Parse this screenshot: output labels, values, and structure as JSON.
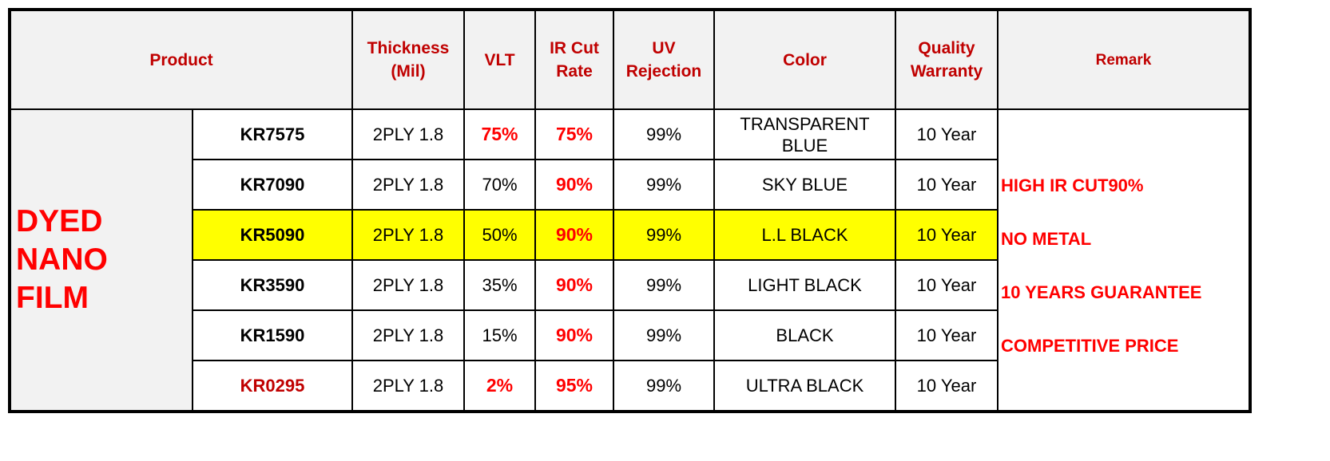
{
  "headers": {
    "product": "Product",
    "thickness": [
      "Thickness",
      "(Mil)"
    ],
    "vlt": "VLT",
    "ir": [
      "IR Cut",
      "Rate"
    ],
    "uv": [
      "UV",
      "Rejection"
    ],
    "color": "Color",
    "warranty": [
      "Quality",
      "Warranty"
    ],
    "remark": "Remark"
  },
  "category": [
    "DYED",
    "NANO",
    "FILM"
  ],
  "rows": [
    {
      "model": "KR7575",
      "thickness": "2PLY 1.8",
      "vlt": "75%",
      "ir": "75%",
      "uv": "99%",
      "color": "TRANSPARENT BLUE",
      "warranty": "10 Year"
    },
    {
      "model": "KR7090",
      "thickness": "2PLY 1.8",
      "vlt": "70%",
      "ir": "90%",
      "uv": "99%",
      "color": "SKY BLUE",
      "warranty": "10 Year"
    },
    {
      "model": "KR5090",
      "thickness": "2PLY 1.8",
      "vlt": "50%",
      "ir": "90%",
      "uv": "99%",
      "color": "L.L BLACK",
      "warranty": "10 Year"
    },
    {
      "model": "KR3590",
      "thickness": "2PLY 1.8",
      "vlt": "35%",
      "ir": "90%",
      "uv": "99%",
      "color": "LIGHT BLACK",
      "warranty": "10 Year"
    },
    {
      "model": "KR1590",
      "thickness": "2PLY 1.8",
      "vlt": "15%",
      "ir": "90%",
      "uv": "99%",
      "color": "BLACK",
      "warranty": "10 Year"
    },
    {
      "model": "KR0295",
      "thickness": "2PLY 1.8",
      "vlt": "2%",
      "ir": "95%",
      "uv": "99%",
      "color": "ULTRA BLACK",
      "warranty": "10 Year"
    }
  ],
  "remarks": [
    "HIGH IR CUT90%",
    "NO METAL",
    "10 YEARS GUARANTEE",
    "COMPETITIVE PRICE"
  ],
  "colors": {
    "header_text": "#c00000",
    "highlight_text": "#ff0000",
    "highlight_row": "#ffff00",
    "header_bg": "#f2f2f2"
  }
}
